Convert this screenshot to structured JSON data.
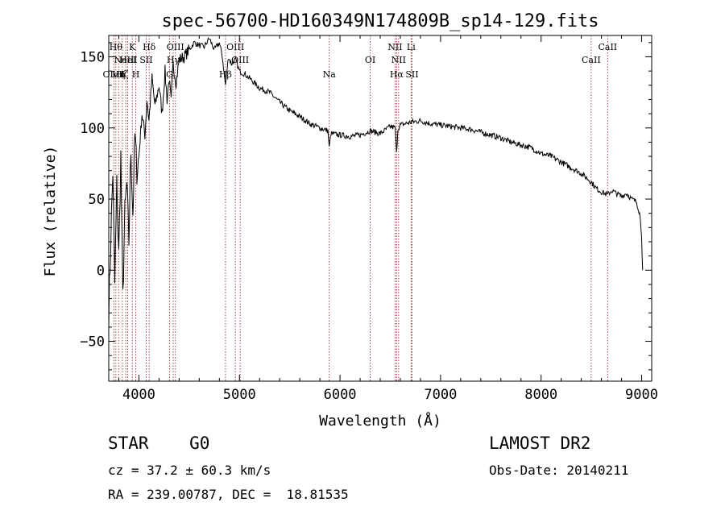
{
  "chart_data": {
    "type": "line",
    "title": "spec-56700-HD160349N174809B_sp14-129.fits",
    "xlabel": "Wavelength (Å)",
    "ylabel": "Flux (relative)",
    "xlim": [
      3700,
      9100
    ],
    "ylim": [
      -78,
      165
    ],
    "x_ticks": [
      4000,
      5000,
      6000,
      7000,
      8000,
      9000
    ],
    "y_ticks": [
      -50,
      0,
      50,
      100,
      150
    ],
    "y_tick_labels": [
      "−50",
      "0",
      "50",
      "100",
      "150"
    ],
    "series": [
      {
        "name": "spectrum",
        "x": [
          3700,
          3720,
          3740,
          3760,
          3780,
          3800,
          3820,
          3840,
          3860,
          3880,
          3900,
          3920,
          3940,
          3960,
          3980,
          4000,
          4030,
          4060,
          4080,
          4100,
          4130,
          4160,
          4200,
          4230,
          4260,
          4280,
          4300,
          4320,
          4340,
          4370,
          4400,
          4450,
          4500,
          4550,
          4600,
          4650,
          4700,
          4750,
          4800,
          4830,
          4861,
          4890,
          4920,
          4960,
          5000,
          5050,
          5100,
          5200,
          5300,
          5400,
          5500,
          5600,
          5700,
          5800,
          5880,
          5893,
          5910,
          6000,
          6100,
          6200,
          6300,
          6400,
          6500,
          6550,
          6563,
          6575,
          6600,
          6700,
          6800,
          6900,
          7000,
          7100,
          7200,
          7300,
          7400,
          7500,
          7600,
          7700,
          7800,
          7900,
          8000,
          8100,
          8200,
          8300,
          8400,
          8500,
          8542,
          8600,
          8662,
          8700,
          8800,
          8850,
          8900,
          8950,
          8980,
          9000,
          9010
        ],
        "y": [
          -30,
          20,
          70,
          -10,
          60,
          10,
          80,
          -20,
          40,
          60,
          20,
          85,
          40,
          95,
          70,
          80,
          110,
          95,
          120,
          105,
          135,
          115,
          130,
          110,
          140,
          120,
          135,
          118,
          145,
          132,
          148,
          150,
          155,
          160,
          158,
          157,
          163,
          155,
          160,
          150,
          130,
          150,
          145,
          148,
          140,
          138,
          135,
          128,
          125,
          118,
          112,
          108,
          103,
          100,
          98,
          86,
          96,
          95,
          94,
          95,
          98,
          96,
          101,
          100,
          82,
          99,
          102,
          104,
          105,
          103,
          102,
          101,
          100,
          99,
          97,
          95,
          93,
          90,
          88,
          86,
          82,
          80,
          76,
          72,
          68,
          62,
          58,
          55,
          53,
          56,
          52,
          54,
          50,
          48,
          40,
          25,
          0
        ]
      }
    ],
    "line_markers": [
      {
        "wl": 3750,
        "label": "OⅣⅡ",
        "row": 3
      },
      {
        "wl": 3771,
        "label": "Hθ",
        "row": 1
      },
      {
        "wl": 3798,
        "label": "Hη",
        "row": 3
      },
      {
        "wl": 3835,
        "label": "Hζ",
        "row": 3
      },
      {
        "wl": 3869,
        "label": "NeIII",
        "row": 2
      },
      {
        "wl": 3889,
        "label": "HeI",
        "row": 2
      },
      {
        "wl": 3934,
        "label": "K",
        "row": 1
      },
      {
        "wl": 3969,
        "label": "H",
        "row": 3
      },
      {
        "wl": 4072,
        "label": "SII",
        "row": 2
      },
      {
        "wl": 4102,
        "label": "Hδ",
        "row": 1
      },
      {
        "wl": 4305,
        "label": "G",
        "row": 3
      },
      {
        "wl": 4341,
        "label": "Hγ",
        "row": 2
      },
      {
        "wl": 4363,
        "label": "OIII",
        "row": 1
      },
      {
        "wl": 4861,
        "label": "Hβ",
        "row": 3
      },
      {
        "wl": 4959,
        "label": "OIII",
        "row": 1
      },
      {
        "wl": 5007,
        "label": "OIII",
        "row": 2
      },
      {
        "wl": 5893,
        "label": "Na",
        "row": 3
      },
      {
        "wl": 6300,
        "label": "OI",
        "row": 2
      },
      {
        "wl": 6548,
        "label": "NII",
        "row": 1
      },
      {
        "wl": 6563,
        "label": "Hα",
        "row": 3
      },
      {
        "wl": 6583,
        "label": "NII",
        "row": 2
      },
      {
        "wl": 6707,
        "label": "Li",
        "row": 1
      },
      {
        "wl": 6716,
        "label": "SII",
        "row": 3
      },
      {
        "wl": 8498,
        "label": "CaII",
        "row": 2
      },
      {
        "wl": 8662,
        "label": "CaII",
        "row": 1
      }
    ],
    "grid": false,
    "legend": "none"
  },
  "meta": {
    "object_class": "STAR",
    "subclass": "G0",
    "survey": "LAMOST DR2",
    "cz_line": "cz = 37.2 ± 60.3 km/s",
    "obs_date": "Obs-Date: 20140211",
    "radec": "RA = 239.00787, DEC =  18.81535"
  },
  "colors": {
    "spectrum": "#000000",
    "marker_line": "#8b1a1a",
    "axes": "#000000"
  }
}
